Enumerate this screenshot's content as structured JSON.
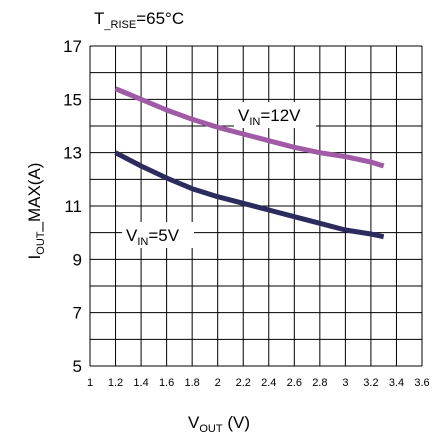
{
  "chart_data": {
    "type": "line",
    "title": {
      "main": "T",
      "sub": "_RISE",
      "tail": "=65°C"
    },
    "xlabel": {
      "main": "V",
      "sub": "OUT",
      "tail": " (V)"
    },
    "ylabel": {
      "main": "I",
      "sub": "OUT",
      "tail": "_MAX(A)"
    },
    "xlim": [
      1,
      3.6
    ],
    "ylim": [
      5,
      17
    ],
    "xticks": [
      "1",
      "1.2",
      "1.4",
      "1.6",
      "1.8",
      "2",
      "2.2",
      "2.4",
      "2.6",
      "2.8",
      "3",
      "3.2",
      "3.4",
      "3.6"
    ],
    "yticks": [
      "5",
      "7",
      "9",
      "11",
      "13",
      "15",
      "17"
    ],
    "grid": true,
    "colors": {
      "series_12v": "#a05aa6",
      "series_5v": "#2b2b5e",
      "grid": "#000000"
    },
    "series": [
      {
        "key": "vin12",
        "label": {
          "main": "V",
          "sub": "IN",
          "tail": "=12V"
        },
        "x": [
          1.2,
          1.4,
          1.6,
          1.8,
          2.0,
          2.2,
          2.4,
          2.6,
          2.8,
          3.0,
          3.2,
          3.3
        ],
        "y": [
          15.4,
          15.0,
          14.6,
          14.25,
          13.95,
          13.7,
          13.45,
          13.2,
          13.0,
          12.85,
          12.65,
          12.5
        ]
      },
      {
        "key": "vin5",
        "label": {
          "main": "V",
          "sub": "IN",
          "tail": "=5V"
        },
        "x": [
          1.2,
          1.4,
          1.6,
          1.8,
          2.0,
          2.2,
          2.4,
          2.6,
          2.8,
          3.0,
          3.2,
          3.3
        ],
        "y": [
          13.0,
          12.5,
          12.05,
          11.65,
          11.35,
          11.1,
          10.85,
          10.6,
          10.35,
          10.1,
          9.95,
          9.85
        ]
      }
    ]
  }
}
